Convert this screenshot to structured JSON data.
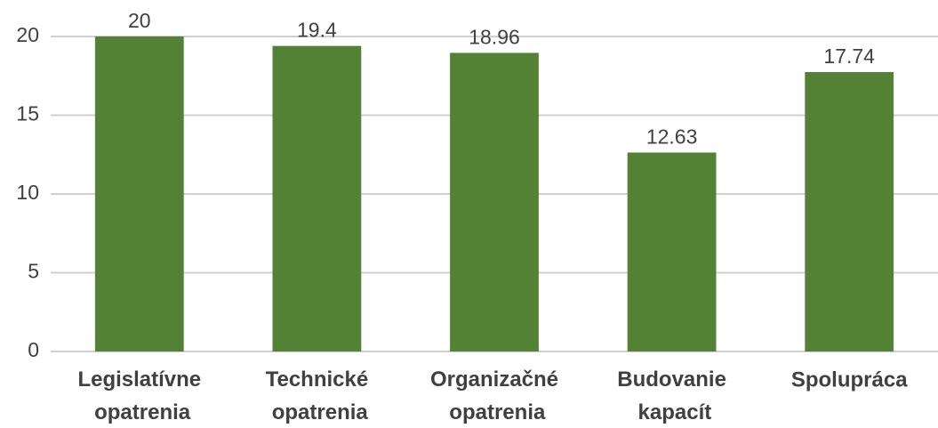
{
  "chart_data": {
    "type": "bar",
    "categories": [
      "Legislatívne opatrenia",
      "Technické opatrenia",
      "Organizačné opatrenia",
      "Budovanie kapacít",
      "Spolupráca"
    ],
    "values": [
      20,
      19.4,
      18.96,
      12.63,
      17.74
    ],
    "color": "#548235",
    "ylim": [
      0,
      20
    ],
    "yticks": [
      0,
      5,
      10,
      15,
      20
    ],
    "grid": true
  }
}
